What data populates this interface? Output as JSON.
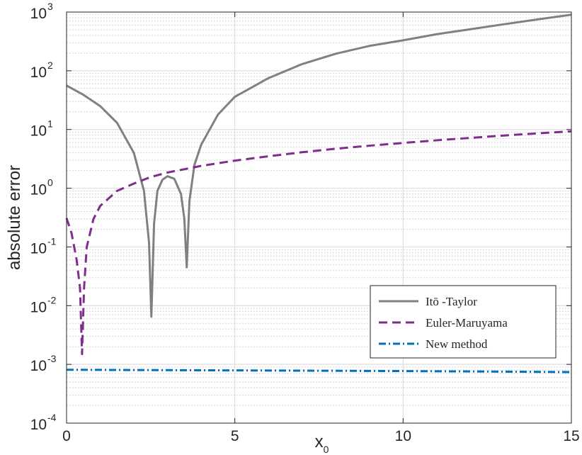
{
  "chart_data": {
    "type": "line",
    "xlabel": "x",
    "xlabel_subscript": "0",
    "ylabel": "absolute error",
    "xlim": [
      0,
      15
    ],
    "ylim": [
      0.0001,
      1000
    ],
    "yscale": "log",
    "grid": "on (major and minor)",
    "legend_position": "bottom-right",
    "x_ticks": [
      {
        "value": 0,
        "label": "0"
      },
      {
        "value": 5,
        "label": "5"
      },
      {
        "value": 10,
        "label": "10"
      },
      {
        "value": 15,
        "label": "15"
      }
    ],
    "y_ticks": [
      {
        "value": 0.0001,
        "base": "10",
        "exp": "-4"
      },
      {
        "value": 0.001,
        "base": "10",
        "exp": "-3"
      },
      {
        "value": 0.01,
        "base": "10",
        "exp": "-2"
      },
      {
        "value": 0.1,
        "base": "10",
        "exp": "-1"
      },
      {
        "value": 1,
        "base": "10",
        "exp": "0"
      },
      {
        "value": 10,
        "base": "10",
        "exp": "1"
      },
      {
        "value": 100,
        "base": "10",
        "exp": "2"
      },
      {
        "value": 1000,
        "base": "10",
        "exp": "3"
      }
    ],
    "series": [
      {
        "name": "Itō -Taylor",
        "color": "#808080",
        "style": "solid",
        "points": [
          [
            0,
            56
          ],
          [
            0.5,
            39
          ],
          [
            1.0,
            25
          ],
          [
            1.5,
            13
          ],
          [
            2.0,
            4.0
          ],
          [
            2.3,
            0.9
          ],
          [
            2.45,
            0.12
          ],
          [
            2.52,
            0.0065
          ],
          [
            2.6,
            0.25
          ],
          [
            2.7,
            0.9
          ],
          [
            2.85,
            1.4
          ],
          [
            3.0,
            1.6
          ],
          [
            3.2,
            1.45
          ],
          [
            3.4,
            0.8
          ],
          [
            3.5,
            0.3
          ],
          [
            3.57,
            0.045
          ],
          [
            3.65,
            0.6
          ],
          [
            3.8,
            2.5
          ],
          [
            4.0,
            5.5
          ],
          [
            4.5,
            18
          ],
          [
            5.0,
            36
          ],
          [
            6.0,
            75
          ],
          [
            7.0,
            130
          ],
          [
            8.0,
            195
          ],
          [
            9.0,
            265
          ],
          [
            10.0,
            330
          ],
          [
            11.0,
            420
          ],
          [
            12.0,
            510
          ],
          [
            13.0,
            620
          ],
          [
            14.0,
            750
          ],
          [
            15.0,
            900
          ]
        ]
      },
      {
        "name": "Euler-Maruyama",
        "color": "#7E2F8E",
        "style": "dashed",
        "points": [
          [
            0,
            0.31
          ],
          [
            0.15,
            0.17
          ],
          [
            0.3,
            0.06
          ],
          [
            0.4,
            0.02
          ],
          [
            0.46,
            0.0015
          ],
          [
            0.52,
            0.02
          ],
          [
            0.6,
            0.1
          ],
          [
            0.8,
            0.3
          ],
          [
            1.0,
            0.5
          ],
          [
            1.5,
            0.9
          ],
          [
            2.0,
            1.2
          ],
          [
            2.5,
            1.55
          ],
          [
            3.0,
            1.85
          ],
          [
            4.0,
            2.4
          ],
          [
            5.0,
            2.95
          ],
          [
            6.0,
            3.5
          ],
          [
            7.0,
            4.1
          ],
          [
            8.0,
            4.7
          ],
          [
            9.0,
            5.3
          ],
          [
            10.0,
            5.9
          ],
          [
            11.0,
            6.55
          ],
          [
            12.0,
            7.2
          ],
          [
            13.0,
            7.9
          ],
          [
            14.0,
            8.6
          ],
          [
            15.0,
            9.3
          ]
        ]
      },
      {
        "name": "New method",
        "color": "#0072BD",
        "style": "dash-dot",
        "points": [
          [
            0,
            0.00081
          ],
          [
            5,
            0.00079
          ],
          [
            10,
            0.00077
          ],
          [
            15,
            0.00074
          ]
        ]
      }
    ]
  }
}
